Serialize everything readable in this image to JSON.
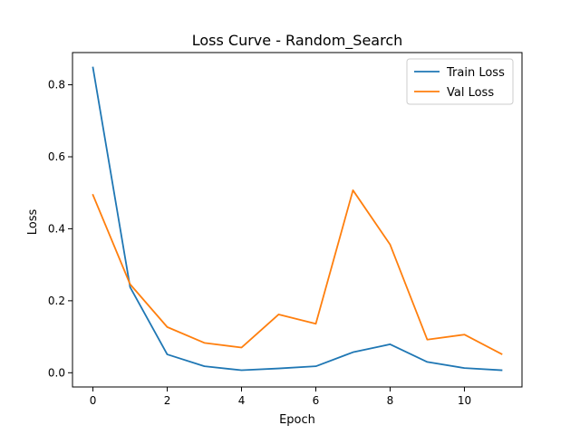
{
  "chart_data": {
    "type": "line",
    "title": "Loss Curve - Random_Search",
    "xlabel": "Epoch",
    "ylabel": "Loss",
    "x": [
      0,
      1,
      2,
      3,
      4,
      5,
      6,
      7,
      8,
      9,
      10,
      11
    ],
    "xlim": [
      -0.55,
      11.55
    ],
    "ylim": [
      -0.0395,
      0.8895
    ],
    "x_ticks": [
      0,
      2,
      4,
      6,
      8,
      10
    ],
    "y_ticks": [
      0.0,
      0.2,
      0.4,
      0.6,
      0.8
    ],
    "x_tick_labels": [
      "0",
      "2",
      "4",
      "6",
      "8",
      "10"
    ],
    "y_tick_labels": [
      "0.0",
      "0.2",
      "0.4",
      "0.6",
      "0.8"
    ],
    "grid": false,
    "legend_position": "top-right",
    "series": [
      {
        "name": "Train Loss",
        "color": "#1f77b4",
        "values": [
          0.848,
          0.238,
          0.051,
          0.018,
          0.007,
          0.012,
          0.018,
          0.057,
          0.079,
          0.03,
          0.013,
          0.007
        ]
      },
      {
        "name": "Val Loss",
        "color": "#ff7f0e",
        "values": [
          0.494,
          0.246,
          0.127,
          0.083,
          0.07,
          0.162,
          0.136,
          0.507,
          0.356,
          0.092,
          0.106,
          0.052
        ]
      }
    ]
  }
}
